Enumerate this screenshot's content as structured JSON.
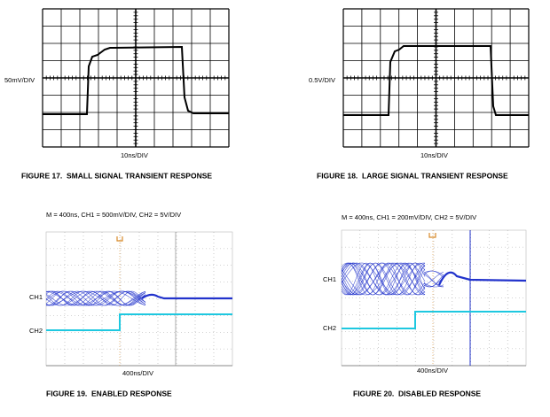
{
  "figures": [
    {
      "y_label": "50mV/DIV",
      "x_label": "10ns/DIV",
      "caption": "FIGURE 17.  SMALL SIGNAL TRANSIENT RESPONSE"
    },
    {
      "y_label": "0.5V/DIV",
      "x_label": "10ns/DIV",
      "caption": "FIGURE 18.  LARGE SIGNAL TRANSIENT RESPONSE"
    },
    {
      "settings": "M = 400ns, CH1 = 500mV/DIV, CH2 = 5V/DIV",
      "ch1_label": "CH1",
      "ch2_label": "CH2",
      "x_label": "400ns/DIV",
      "caption": "FIGURE 19.  ENABLED RESPONSE"
    },
    {
      "settings": "M = 400ns, CH1 = 200mV/DIV, CH2 = 5V/DIV",
      "ch1_label": "CH1",
      "ch2_label": "CH2",
      "x_label": "400ns/DIV",
      "caption": "FIGURE 20.  DISABLED RESPONSE"
    }
  ]
}
